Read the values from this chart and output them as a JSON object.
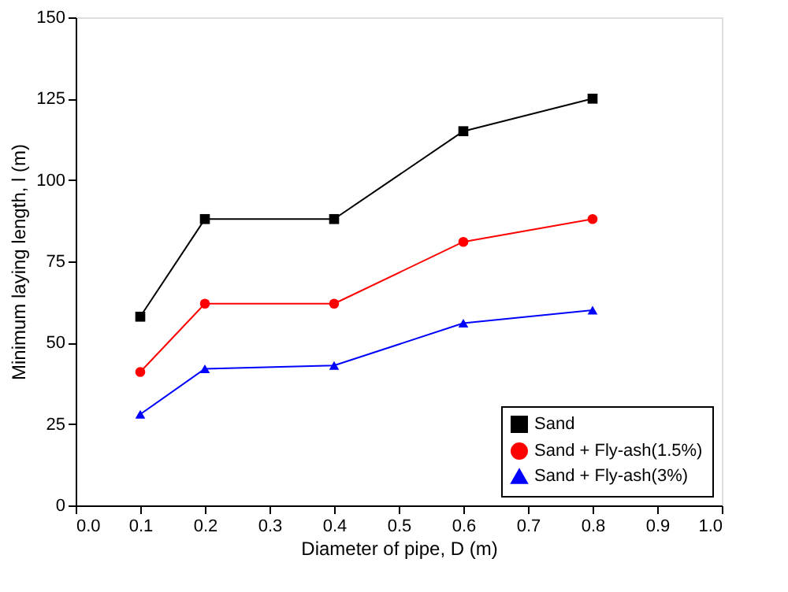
{
  "chart_data": {
    "type": "line",
    "xlabel": "Diameter of pipe, D (m)",
    "ylabel": "Minimum laying length, l (m)",
    "x": [
      0.1,
      0.2,
      0.4,
      0.6,
      0.8
    ],
    "series": [
      {
        "name": "Sand",
        "color": "#000000",
        "marker": "square",
        "values": [
          58,
          88,
          88,
          115,
          125
        ]
      },
      {
        "name": "Sand + Fly-ash(1.5%)",
        "color": "#ff0000",
        "marker": "circle",
        "values": [
          41,
          62,
          62,
          81,
          88
        ]
      },
      {
        "name": "Sand + Fly-ash(3%)",
        "color": "#0000ff",
        "marker": "triangle",
        "values": [
          28,
          42,
          43,
          56,
          60
        ]
      }
    ],
    "xlim": [
      0,
      1
    ],
    "xticks": [
      {
        "value": 0,
        "label": "0.0"
      },
      0.1,
      0.2,
      0.3,
      0.4,
      0.5,
      0.6,
      0.7,
      0.8,
      0.9,
      {
        "value": 1,
        "label": "1.0"
      }
    ],
    "ylim": [
      0,
      150
    ],
    "yticks": [
      0,
      25,
      50,
      75,
      100,
      125,
      150
    ],
    "grid": false,
    "legend": "bottom right",
    "line_style": "solid"
  }
}
